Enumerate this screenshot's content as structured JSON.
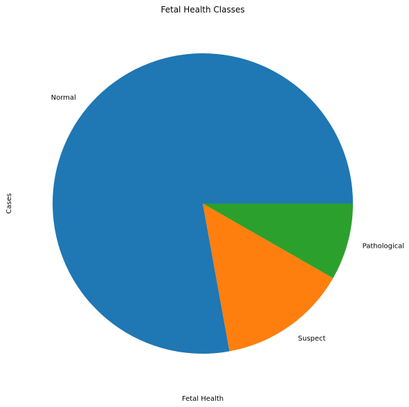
{
  "chart_data": {
    "type": "pie",
    "title": "Fetal Health Classes",
    "xlabel": "Fetal Health",
    "ylabel": "Cases",
    "slices": [
      {
        "label": "Normal",
        "value": 1655,
        "color": "#1f77b4"
      },
      {
        "label": "Suspect",
        "value": 295,
        "color": "#ff7f0e"
      },
      {
        "label": "Pathological",
        "value": 176,
        "color": "#2ca02c"
      }
    ],
    "start_angle_deg": 0,
    "direction": "counterclockwise",
    "legend": false
  }
}
